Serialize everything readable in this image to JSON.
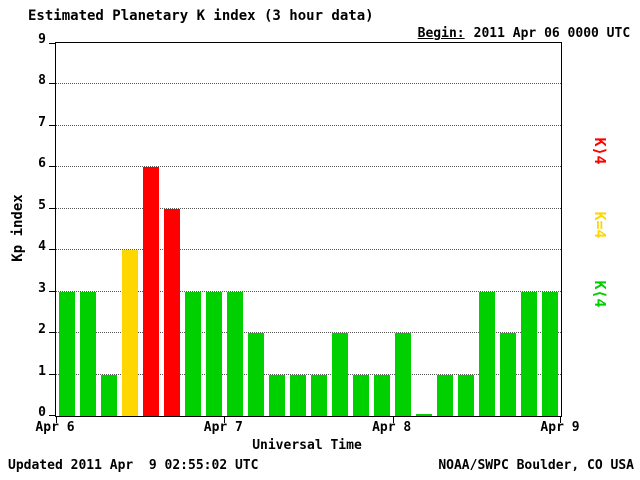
{
  "title": "Estimated Planetary K index (3 hour data)",
  "begin_label": "Begin:",
  "begin_value": "2011 Apr 06 0000 UTC",
  "footer": {
    "updated": "Updated 2011 Apr  9 02:55:02 UTC",
    "source": "NOAA/SWPC Boulder, CO USA"
  },
  "legend": [
    {
      "label": "K⟩4",
      "color": "#ff0000"
    },
    {
      "label": "K=4",
      "color": "#ffd700"
    },
    {
      "label": "K⟨4",
      "color": "#00d000"
    }
  ],
  "chart_data": {
    "type": "bar",
    "title": "Estimated Planetary K index (3 hour data)",
    "xlabel": "Universal Time",
    "ylabel": "Kp index",
    "ylim": [
      0,
      9
    ],
    "yticks": [
      0,
      1,
      2,
      3,
      4,
      5,
      6,
      7,
      8,
      9
    ],
    "xticklabels": [
      "Apr 6",
      "Apr 7",
      "Apr 8",
      "Apr 9"
    ],
    "grid": true,
    "bar_interval_hours": 3,
    "begin": "2011 Apr 06 0000 UTC",
    "values": [
      3,
      3,
      1,
      4,
      6,
      5,
      3,
      3,
      3,
      2,
      1,
      1,
      1,
      2,
      1,
      1,
      2,
      0,
      1,
      1,
      3,
      2,
      3,
      3
    ],
    "colors": {
      "low": "#00d000",
      "mid": "#ffd700",
      "high": "#ff0000"
    },
    "thresholds": {
      "mid": 4
    },
    "legend_entries": [
      "K>4 red",
      "K=4 yellow",
      "K<4 green"
    ]
  }
}
